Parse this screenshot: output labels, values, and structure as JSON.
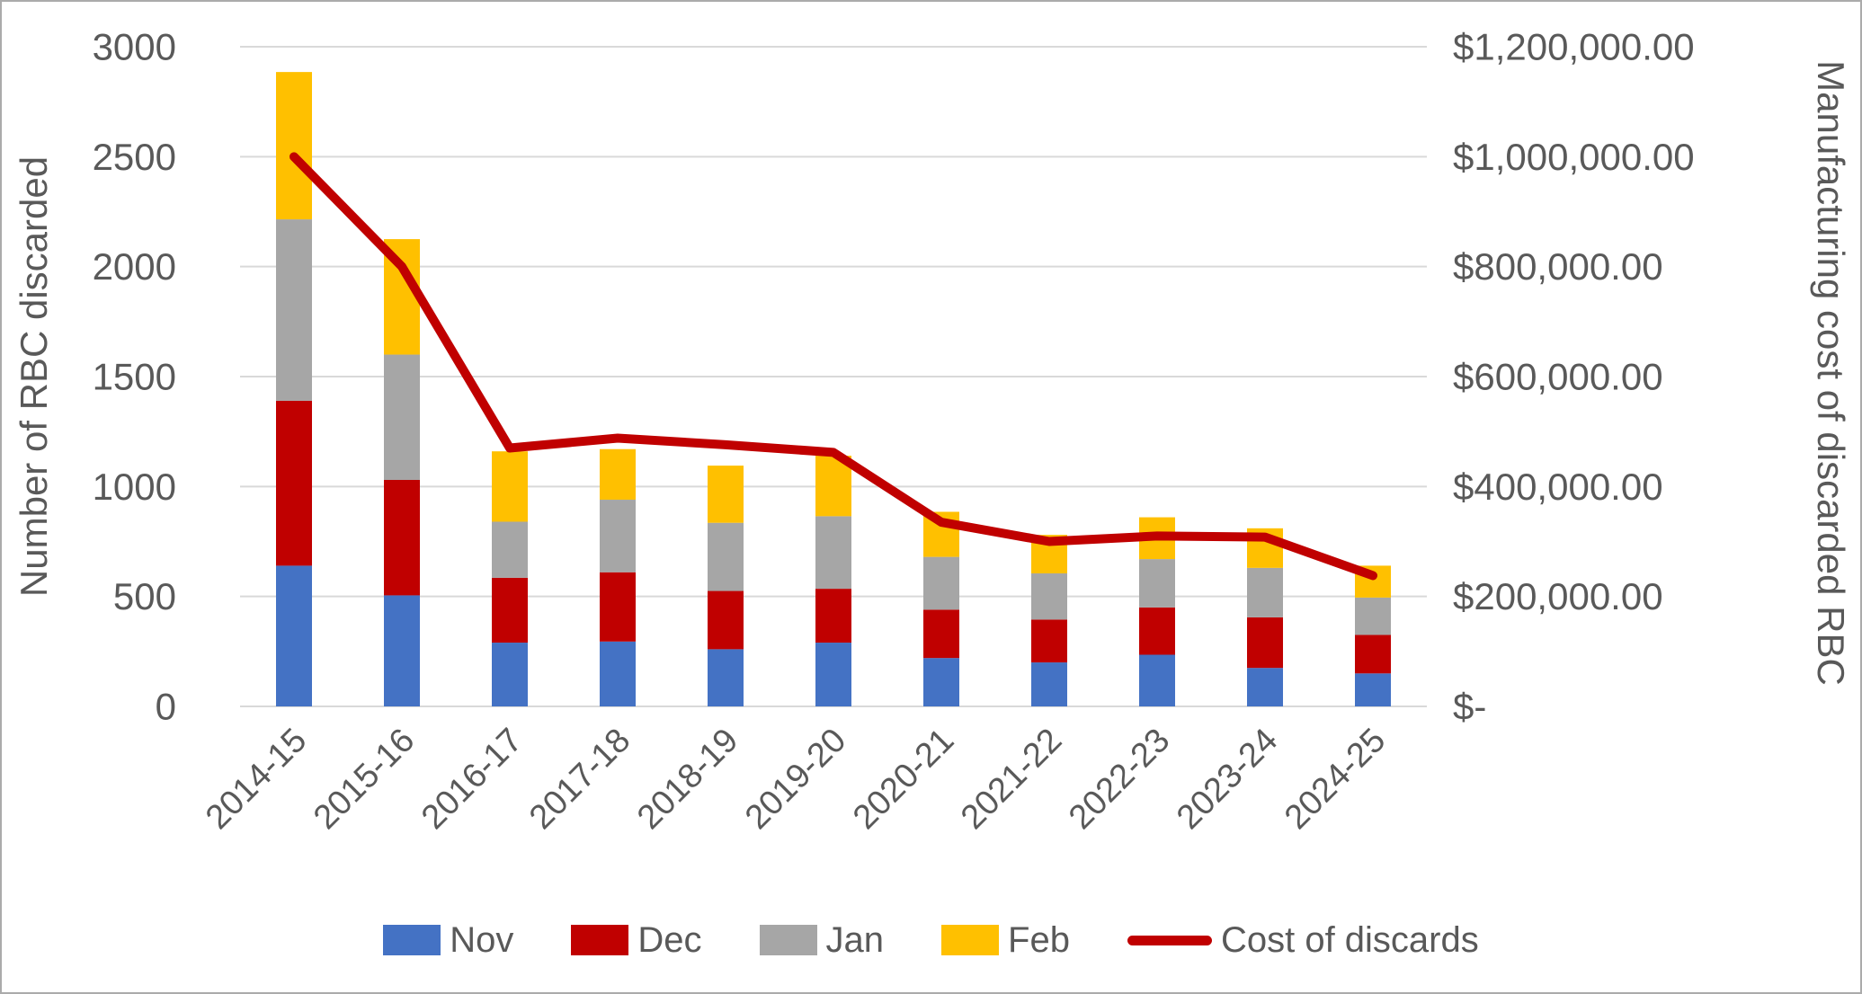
{
  "colors": {
    "nov": "#4472C4",
    "dec": "#C00000",
    "jan": "#A6A6A6",
    "feb": "#FFC000",
    "cost_line": "#C00000",
    "grid": "#D9D9D9",
    "axis_text": "#595959",
    "frame_border": "#ABABAB",
    "background": "#FFFFFF"
  },
  "left_axis": {
    "title": "Number of RBC discarded",
    "min": 0,
    "max": 3000,
    "step": 500,
    "tick_labels": [
      "0",
      "500",
      "1000",
      "1500",
      "2000",
      "2500",
      "3000"
    ]
  },
  "right_axis": {
    "title": "Manufacturing cost of discarded RBC",
    "min": 0,
    "max": 1200000,
    "step": 200000,
    "tick_labels": [
      "$-",
      "$200,000.00",
      "$400,000.00",
      "$600,000.00",
      "$800,000.00",
      "$1,000,000.00",
      "$1,200,000.00"
    ]
  },
  "legend": [
    {
      "label": "Nov",
      "type": "box",
      "color": "#4472C4"
    },
    {
      "label": "Dec",
      "type": "box",
      "color": "#C00000"
    },
    {
      "label": "Jan",
      "type": "box",
      "color": "#A6A6A6"
    },
    {
      "label": "Feb",
      "type": "box",
      "color": "#FFC000"
    },
    {
      "label": "Cost of discards",
      "type": "line",
      "color": "#C00000"
    }
  ],
  "chart_data": {
    "type": "bar",
    "subtype": "stacked-bars-with-line-combo",
    "title": "",
    "xlabel": "",
    "ylabel_left": "Number of RBC discarded",
    "ylabel_right": "Manufacturing cost of discarded RBC",
    "grid": "horizontal-only",
    "legend_position": "bottom",
    "ylim_left": [
      0,
      3000
    ],
    "ylim_right": [
      0,
      1200000
    ],
    "categories": [
      "2014-15",
      "2015-16",
      "2016-17",
      "2017-18",
      "2018-19",
      "2019-20",
      "2020-21",
      "2021-22",
      "2022-23",
      "2023-24",
      "2024-25"
    ],
    "series": [
      {
        "name": "Nov",
        "type": "bar",
        "stack": true,
        "axis": "left",
        "color": "#4472C4",
        "values": [
          640,
          505,
          290,
          295,
          260,
          290,
          220,
          200,
          235,
          175,
          150
        ]
      },
      {
        "name": "Dec",
        "type": "bar",
        "stack": true,
        "axis": "left",
        "color": "#C00000",
        "values": [
          750,
          525,
          295,
          315,
          265,
          245,
          220,
          195,
          215,
          230,
          175
        ]
      },
      {
        "name": "Jan",
        "type": "bar",
        "stack": true,
        "axis": "left",
        "color": "#A6A6A6",
        "values": [
          825,
          570,
          255,
          330,
          310,
          330,
          240,
          210,
          220,
          225,
          170
        ]
      },
      {
        "name": "Feb",
        "type": "bar",
        "stack": true,
        "axis": "left",
        "color": "#FFC000",
        "values": [
          670,
          525,
          320,
          230,
          260,
          275,
          205,
          175,
          190,
          180,
          145
        ]
      },
      {
        "name": "Cost of discards",
        "type": "line",
        "axis": "right",
        "color": "#C00000",
        "values": [
          1000000,
          800000,
          470000,
          488000,
          476000,
          462000,
          335000,
          300000,
          310000,
          308000,
          238000
        ]
      }
    ]
  }
}
